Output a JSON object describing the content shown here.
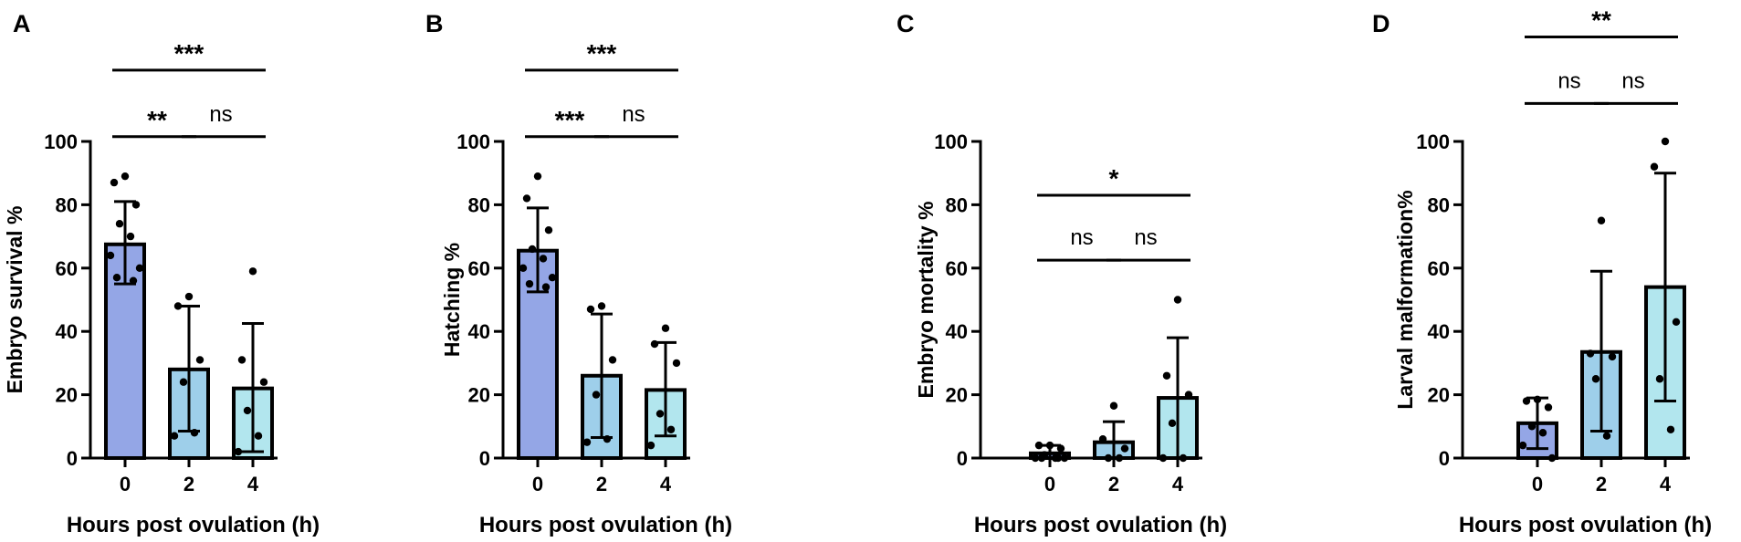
{
  "colors": {
    "bar_0": "#94A6E6",
    "bar_2": "#9ECFEA",
    "bar_4": "#B2E6EE",
    "ink": "#000000"
  },
  "chart_data": [
    {
      "panel_label": "A",
      "type": "bar",
      "xlabel": "Hours post ovulation (h)",
      "ylabel": "Embryo survival %",
      "categories": [
        "0",
        "2",
        "4"
      ],
      "yticks": [
        "0",
        "20",
        "40",
        "60",
        "80",
        "100"
      ],
      "ylim": [
        0,
        100
      ],
      "values": [
        67.5,
        28,
        22
      ],
      "error_upper": [
        81,
        48,
        42.5
      ],
      "error_lower": [
        55,
        8.5,
        2
      ],
      "points": [
        [
          89,
          87,
          80,
          74,
          70,
          64,
          60,
          57,
          56
        ],
        [
          51,
          48,
          31,
          24,
          8,
          7
        ],
        [
          59,
          31,
          24,
          15,
          7,
          2
        ]
      ],
      "sig": [
        {
          "pair": [
            0,
            2
          ],
          "label": "***",
          "y": 122.5
        },
        {
          "pair": [
            0,
            1
          ],
          "label": "**",
          "y": 101.5
        },
        {
          "pair": [
            1,
            2
          ],
          "label": "ns",
          "y": 101.5
        }
      ]
    },
    {
      "panel_label": "B",
      "type": "bar",
      "xlabel": "Hours post ovulation (h)",
      "ylabel": "Hatching %",
      "categories": [
        "0",
        "2",
        "4"
      ],
      "yticks": [
        "0",
        "20",
        "40",
        "60",
        "80",
        "100"
      ],
      "ylim": [
        0,
        100
      ],
      "values": [
        65.5,
        26,
        21.5
      ],
      "error_upper": [
        79,
        45.5,
        36.5
      ],
      "error_lower": [
        52.5,
        6.5,
        7
      ],
      "points": [
        [
          89,
          82,
          72,
          66,
          63,
          60,
          57,
          55,
          54
        ],
        [
          48,
          47,
          31,
          20,
          6,
          5
        ],
        [
          41,
          36,
          30,
          14,
          9,
          4
        ]
      ],
      "sig": [
        {
          "pair": [
            0,
            2
          ],
          "label": "***",
          "y": 122.5
        },
        {
          "pair": [
            0,
            1
          ],
          "label": "***",
          "y": 101.5
        },
        {
          "pair": [
            1,
            2
          ],
          "label": "ns",
          "y": 101.5
        }
      ]
    },
    {
      "panel_label": "C",
      "type": "bar",
      "xlabel": "Hours post ovulation (h)",
      "ylabel": "Embryo mortality %",
      "categories": [
        "0",
        "2",
        "4"
      ],
      "yticks": [
        "0",
        "20",
        "40",
        "60",
        "80",
        "100"
      ],
      "ylim": [
        0,
        100
      ],
      "values": [
        1.5,
        5,
        19
      ],
      "error_upper": [
        4,
        11.5,
        38
      ],
      "error_lower": [
        0,
        0,
        0
      ],
      "points": [
        [
          4,
          4,
          3,
          1,
          0,
          0,
          0,
          0,
          0
        ],
        [
          16.5,
          6,
          3,
          0,
          0
        ],
        [
          50,
          26,
          20,
          11,
          0,
          0
        ]
      ],
      "sig": [
        {
          "pair": [
            0,
            2
          ],
          "label": "*",
          "y": 83
        },
        {
          "pair": [
            0,
            1
          ],
          "label": "ns",
          "y": 62.5
        },
        {
          "pair": [
            1,
            2
          ],
          "label": "ns",
          "y": 62.5
        }
      ]
    },
    {
      "panel_label": "D",
      "type": "bar",
      "xlabel": "Hours post ovulation (h)",
      "ylabel": "Larval malformation%",
      "categories": [
        "0",
        "2",
        "4"
      ],
      "yticks": [
        "0",
        "20",
        "40",
        "60",
        "80",
        "100"
      ],
      "ylim": [
        0,
        100
      ],
      "values": [
        11,
        33.5,
        54
      ],
      "error_upper": [
        19,
        59,
        90
      ],
      "error_lower": [
        3,
        8.5,
        18
      ],
      "points": [
        [
          18.5,
          18,
          16,
          10,
          8,
          4,
          0
        ],
        [
          75,
          33,
          32,
          25,
          7
        ],
        [
          100,
          92,
          43,
          25,
          9
        ]
      ],
      "sig": [
        {
          "pair": [
            0,
            2
          ],
          "label": "**",
          "y": 133
        },
        {
          "pair": [
            0,
            1
          ],
          "label": "ns",
          "y": 112
        },
        {
          "pair": [
            1,
            2
          ],
          "label": "ns",
          "y": 112
        }
      ]
    }
  ]
}
